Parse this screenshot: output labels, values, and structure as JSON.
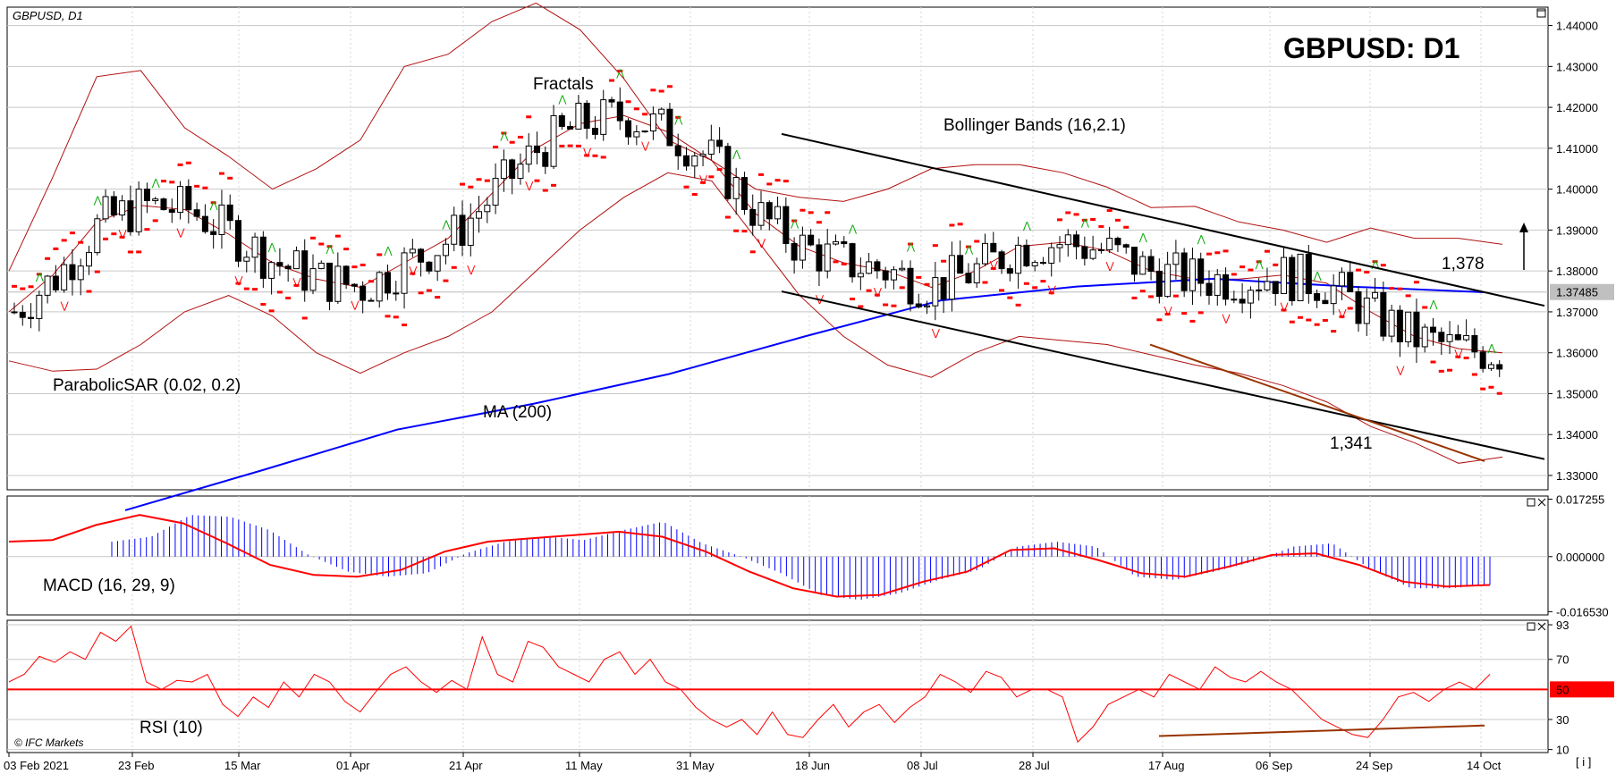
{
  "chart_data": {
    "type": "candlestick",
    "symbol_label": "GBPUSD, D1",
    "title": "GBPUSD: D1",
    "watermark": "© IFC Markets",
    "corner_icon_label": "[ i ]",
    "x_ticks": [
      "03 Feb 2021",
      "23 Feb",
      "15 Mar",
      "01 Apr",
      "21 Apr",
      "11 May",
      "31 May",
      "18 Jun",
      "08 Jul",
      "28 Jul",
      "17 Aug",
      "06 Sep",
      "24 Sep",
      "14 Oct"
    ],
    "price_panel": {
      "y_ticks": [
        "1.44000",
        "1.43000",
        "1.42000",
        "1.41000",
        "1.40000",
        "1.39000",
        "1.38000",
        "1.37000",
        "1.36000",
        "1.35000",
        "1.34000",
        "1.33000"
      ],
      "ylim": [
        1.3265,
        1.4445
      ],
      "current_price": "1.37485",
      "current_price_value": 1.37485,
      "ma_value_at_right": 1.3748,
      "annotations": {
        "fractals": "Fractals",
        "bollinger": "Bollinger Bands (16,2.1)",
        "parabolic": "ParabolicSAR (0.02, 0.2)",
        "ma": "MA (200)",
        "high_level": "1,378",
        "low_level": "1,341"
      },
      "ma200": [
        1.3215,
        1.3312,
        1.3412,
        1.3475,
        1.3548,
        1.364,
        1.3728,
        1.3762,
        1.3781,
        1.3762,
        1.3748
      ],
      "bollinger_upper": [
        1.38,
        1.403,
        1.4275,
        1.429,
        1.415,
        1.408,
        1.4,
        1.405,
        1.412,
        1.43,
        1.433,
        1.441,
        1.4455,
        1.439,
        1.427,
        1.412,
        1.407,
        1.4,
        1.398,
        1.397,
        1.4,
        1.405,
        1.406,
        1.406,
        1.404,
        1.4005,
        1.3955,
        1.3958,
        1.392,
        1.39,
        1.387,
        1.3905,
        1.388,
        1.388,
        1.3865
      ],
      "bollinger_mid": [
        1.37,
        1.379,
        1.392,
        1.396,
        1.395,
        1.389,
        1.382,
        1.378,
        1.376,
        1.382,
        1.388,
        1.399,
        1.41,
        1.416,
        1.418,
        1.414,
        1.407,
        1.394,
        1.386,
        1.382,
        1.38,
        1.376,
        1.38,
        1.386,
        1.387,
        1.385,
        1.38,
        1.378,
        1.378,
        1.379,
        1.377,
        1.37,
        1.364,
        1.361,
        1.36
      ],
      "bollinger_lower": [
        1.358,
        1.3555,
        1.356,
        1.362,
        1.37,
        1.374,
        1.369,
        1.36,
        1.355,
        1.36,
        1.364,
        1.37,
        1.38,
        1.39,
        1.398,
        1.404,
        1.402,
        1.388,
        1.374,
        1.364,
        1.357,
        1.354,
        1.36,
        1.364,
        1.363,
        1.362,
        1.3595,
        1.357,
        1.355,
        1.352,
        1.348,
        1.342,
        1.338,
        1.333,
        1.3345
      ],
      "trend_lines": [
        {
          "name": "channel-upper",
          "from": [
            "18 Jun",
            1.4135
          ],
          "to": [
            "14 Oct",
            1.3715
          ]
        },
        {
          "name": "channel-lower",
          "from": [
            "18 Jun",
            1.375
          ],
          "to": [
            "14 Oct",
            1.334
          ]
        },
        {
          "name": "support-red",
          "from": [
            "17 Aug",
            1.362
          ],
          "to": [
            "14 Oct",
            1.3335
          ]
        }
      ]
    },
    "macd_panel": {
      "label": "MACD (16, 29, 9)",
      "y_ticks": [
        "0.017255",
        "0.000000",
        "-0.016530"
      ],
      "ylim": [
        -0.0175,
        0.0182
      ],
      "histogram": [
        0.0045,
        0.006,
        0.0125,
        0.012,
        0.008,
        0.0005,
        -0.0045,
        -0.006,
        -0.005,
        0.001,
        0.0045,
        0.006,
        0.005,
        0.008,
        0.0105,
        0.004,
        0.0,
        -0.005,
        -0.0115,
        -0.013,
        -0.011,
        -0.007,
        -0.004,
        0.003,
        0.0045,
        0.003,
        -0.006,
        -0.007,
        -0.0045,
        -0.0015,
        0.003,
        0.004,
        -0.004,
        -0.0095,
        -0.0095,
        -0.0085
      ],
      "signal": [
        0.0045,
        0.005,
        0.0095,
        0.0125,
        0.01,
        0.004,
        -0.0025,
        -0.0055,
        -0.006,
        -0.004,
        0.0015,
        0.0045,
        0.0055,
        0.0065,
        0.0075,
        0.006,
        0.0015,
        -0.0045,
        -0.0095,
        -0.012,
        -0.0115,
        -0.0075,
        -0.0045,
        0.002,
        0.0025,
        -0.001,
        -0.005,
        -0.006,
        -0.003,
        0.0005,
        0.001,
        -0.0025,
        -0.0075,
        -0.009,
        -0.0085
      ]
    },
    "rsi_panel": {
      "label": "RSI (10)",
      "y_ticks": [
        "93",
        "70",
        "30",
        "10"
      ],
      "level_label": "50",
      "ylim": [
        8,
        96
      ],
      "values": [
        55,
        60,
        72,
        68,
        75,
        70,
        88,
        82,
        92,
        55,
        50,
        56,
        55,
        60,
        40,
        32,
        45,
        38,
        55,
        45,
        60,
        55,
        42,
        35,
        48,
        60,
        65,
        55,
        48,
        56,
        50,
        85,
        60,
        55,
        82,
        78,
        65,
        60,
        55,
        70,
        75,
        60,
        70,
        55,
        50,
        38,
        30,
        25,
        30,
        20,
        35,
        20,
        18,
        30,
        40,
        25,
        35,
        40,
        28,
        38,
        45,
        60,
        55,
        48,
        62,
        58,
        45,
        50,
        50,
        45,
        15,
        25,
        40,
        45,
        50,
        45,
        60,
        55,
        50,
        65,
        58,
        55,
        62,
        55,
        50,
        40,
        30,
        25,
        20,
        18,
        30,
        45,
        48,
        42,
        50,
        55,
        50,
        60
      ],
      "trend_line": {
        "from": [
          "17 Aug",
          19
        ],
        "to": [
          "14 Oct",
          26
        ]
      }
    }
  },
  "candles": {
    "count": 180,
    "bull_color": "#ffffff",
    "bear_color": "#000000",
    "sar_color": "#ff0000",
    "fractal_up_color": "#00aa00",
    "fractal_down_color": "#ff0000",
    "ma_color": "#0000ff",
    "bollinger_color": "#b01010"
  }
}
